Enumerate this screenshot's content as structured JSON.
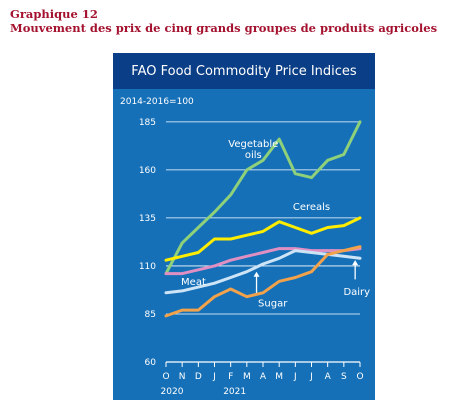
{
  "document": {
    "heading_line1": "Graphique 12",
    "heading_line2": "Mouvement des prix de cinq grands groupes de produits agricoles"
  },
  "chart_data": {
    "type": "line",
    "title": "FAO Food Commodity Price Indices",
    "units_label": "2014-2016=100",
    "xlabel": "",
    "ylabel": "",
    "categories": [
      "O",
      "N",
      "D",
      "J",
      "F",
      "M",
      "A",
      "M",
      "J",
      "J",
      "A",
      "S",
      "O"
    ],
    "year_labels": [
      {
        "label": "2020",
        "at": "O"
      },
      {
        "label": "2021",
        "at": "F"
      }
    ],
    "yticks": [
      60,
      85,
      110,
      135,
      160,
      185
    ],
    "ylim": [
      60,
      187
    ],
    "grid": true,
    "series": [
      {
        "name": "Vegetable oils",
        "label_lines": [
          "Vegetable",
          "oils"
        ],
        "label_at": [
          5.4,
          172
        ],
        "color": "#8ed17a",
        "values": [
          106,
          122,
          130,
          138,
          147,
          160,
          165,
          176,
          158,
          156,
          165,
          168,
          185
        ]
      },
      {
        "name": "Cereals",
        "label_lines": [
          "Cereals"
        ],
        "label_at": [
          9.0,
          139
        ],
        "color": "#ffed00",
        "values": [
          113,
          115,
          117,
          124,
          124,
          126,
          128,
          133,
          130,
          127,
          130,
          131,
          135
        ]
      },
      {
        "name": "Meat",
        "label_lines": [
          "Meat"
        ],
        "label_at": [
          1.7,
          100
        ],
        "color": "#e08fc3",
        "values": [
          106,
          106,
          108,
          110,
          113,
          115,
          117,
          119,
          119,
          118,
          118,
          118,
          119
        ]
      },
      {
        "name": "Dairy",
        "label_lines": [
          "Dairy"
        ],
        "label_at": [
          11.8,
          95
        ],
        "color": "#cde4f7",
        "values": [
          96,
          97,
          99,
          101,
          104,
          107,
          111,
          114,
          118,
          117,
          116,
          115,
          114
        ]
      },
      {
        "name": "Sugar",
        "label_lines": [
          "Sugar"
        ],
        "label_at": [
          6.6,
          89
        ],
        "color": "#f2a24a",
        "values": [
          84,
          87,
          87,
          94,
          98,
          94,
          96,
          102,
          104,
          107,
          116,
          118,
          120
        ]
      }
    ]
  }
}
